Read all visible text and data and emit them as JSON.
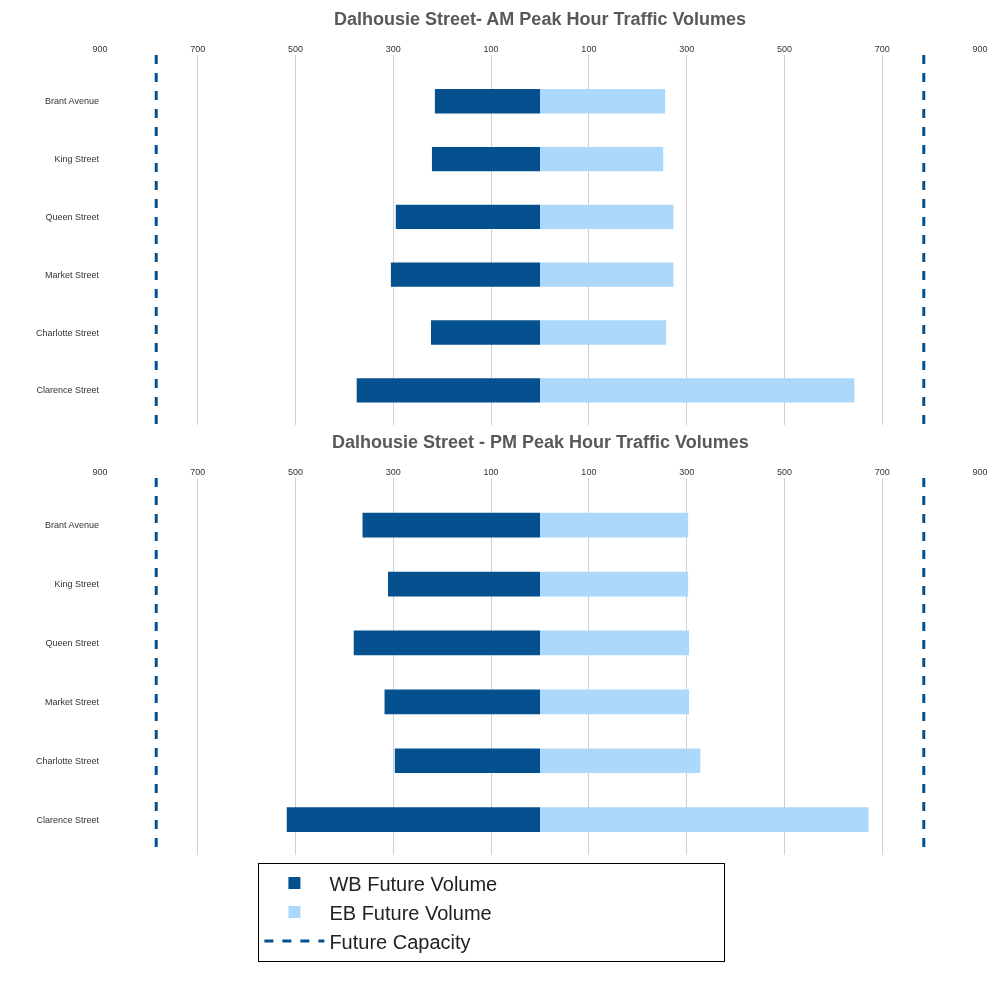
{
  "chart_data": [
    {
      "type": "bar",
      "title": "Dalhousie Street- AM Peak Hour Traffic Volumes",
      "orientation": "horizontal",
      "stacked": true,
      "categories": [
        "Brant Avenue",
        "King Street",
        "Queen Street",
        "Market Street",
        "Charlotte Street",
        "Clarence Street"
      ],
      "series": [
        {
          "name": "WB Future Volume",
          "color": "#05518f",
          "values": [
            -215,
            -221,
            -295,
            -305,
            -223,
            -375
          ]
        },
        {
          "name": "EB Future Volume",
          "color": "#acd8fb",
          "values": [
            256,
            252,
            273,
            273,
            258,
            643
          ]
        }
      ],
      "xlim": [
        -900,
        900
      ],
      "xticks": [
        {
          "value": -900,
          "label": "900"
        },
        {
          "value": -700,
          "label": "700"
        },
        {
          "value": -500,
          "label": "500"
        },
        {
          "value": -300,
          "label": "300"
        },
        {
          "value": -100,
          "label": "100"
        },
        100,
        300,
        500,
        700,
        900
      ],
      "ref_lines": [
        {
          "axis": "x",
          "value": -785,
          "label": "Future Capacity",
          "color": "#05518f",
          "line_style": "dashed"
        },
        {
          "axis": "x",
          "value": 785,
          "color": "#05518f",
          "line_style": "dashed"
        }
      ],
      "grid": "x",
      "legend": "bottom"
    },
    {
      "type": "bar",
      "title": "Dalhousie Street - PM Peak Hour Traffic Volumes",
      "orientation": "horizontal",
      "stacked": true,
      "categories": [
        "Brant Avenue",
        "King Street",
        "Queen Street",
        "Market Street",
        "Charlotte Street",
        "Clarence Street"
      ],
      "series": [
        {
          "color": "#05518f",
          "values": [
            -363,
            -311,
            -381,
            -318,
            -297,
            -518
          ]
        },
        {
          "color": "#acd8fb",
          "values": [
            303,
            303,
            305,
            305,
            328,
            672
          ]
        }
      ],
      "xlim": [
        -900,
        900
      ],
      "xticks": [
        {
          "value": -900,
          "label": "900"
        },
        {
          "value": -700,
          "label": "700"
        },
        {
          "value": -500,
          "label": "500"
        },
        {
          "value": -300,
          "label": "300"
        },
        {
          "value": -100,
          "label": "100"
        },
        100,
        300,
        500,
        700,
        900
      ],
      "ref_lines": [
        {
          "axis": "x",
          "value": -785,
          "color": "#05518f",
          "line_style": "dashed"
        },
        {
          "axis": "x",
          "value": 785,
          "color": "#05518f",
          "line_style": "dashed"
        }
      ],
      "grid": "x"
    }
  ]
}
